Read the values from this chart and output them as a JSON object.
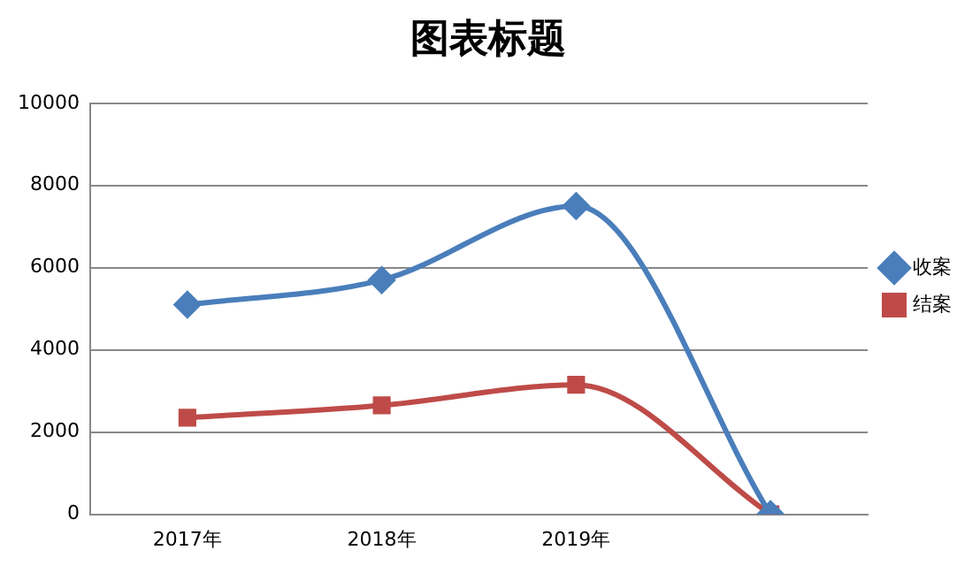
{
  "chart_data": {
    "type": "line",
    "title": "图表标题",
    "categories": [
      "2017年",
      "2018年",
      "2019年",
      null
    ],
    "series": [
      {
        "name": "收案",
        "color": "#4a7ebb",
        "marker": "diamond",
        "values": [
          5100,
          5700,
          7500,
          0
        ]
      },
      {
        "name": "结案",
        "color": "#be4b48",
        "marker": "square",
        "values": [
          2350,
          2650,
          3150,
          0
        ]
      }
    ],
    "ylim": [
      0,
      10000
    ],
    "yticks": [
      0,
      2000,
      4000,
      6000,
      8000,
      10000
    ],
    "grid": "y",
    "legend": "right",
    "line_style": "solid"
  }
}
